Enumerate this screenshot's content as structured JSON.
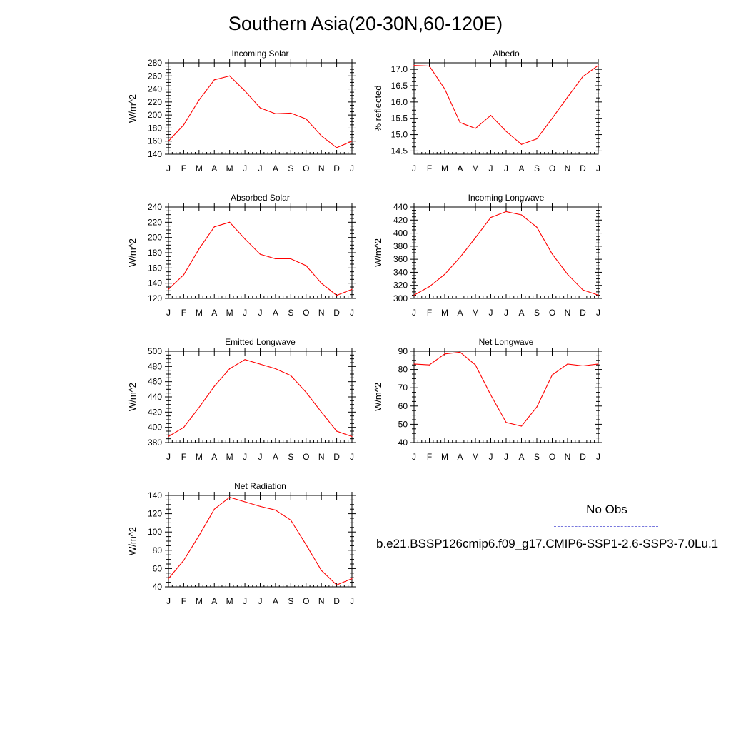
{
  "title": "Southern Asia(20-30N,60-120E)",
  "legend": {
    "obs_label": "No Obs",
    "model_label": "b.e21.BSSP126cmip6.f09_g17.CMIP6-SSP1-2.6-SSP3-7.0Lu.1",
    "model_color": "#ff0000",
    "obs_color": "#7777dd"
  },
  "chart_data": [
    {
      "type": "line",
      "title": "Incoming Solar",
      "ylabel": "W/m^2",
      "x": [
        "J",
        "F",
        "M",
        "A",
        "M",
        "J",
        "J",
        "A",
        "S",
        "O",
        "N",
        "D",
        "J"
      ],
      "ylim": [
        140,
        280
      ],
      "yticks": [
        140,
        160,
        180,
        200,
        220,
        240,
        260,
        280
      ],
      "series": [
        {
          "values": [
            160,
            185,
            223,
            254,
            260,
            237,
            211,
            202,
            203,
            194,
            168,
            150,
            160
          ]
        }
      ]
    },
    {
      "type": "line",
      "title": "Albedo",
      "ylabel": "% reflected",
      "x": [
        "J",
        "F",
        "M",
        "A",
        "M",
        "J",
        "J",
        "A",
        "S",
        "O",
        "N",
        "D",
        "J"
      ],
      "ylim": [
        14.4,
        17.2
      ],
      "yticks": [
        "14.5",
        "15.0",
        "15.5",
        "16.0",
        "16.5",
        "17.0"
      ],
      "series": [
        {
          "values": [
            17.12,
            17.1,
            16.4,
            15.37,
            15.19,
            15.59,
            15.1,
            14.7,
            14.87,
            15.5,
            16.15,
            16.78,
            17.12
          ]
        }
      ]
    },
    {
      "type": "line",
      "title": "Absorbed Solar",
      "ylabel": "W/m^2",
      "x": [
        "J",
        "F",
        "M",
        "A",
        "M",
        "J",
        "J",
        "A",
        "S",
        "O",
        "N",
        "D",
        "J"
      ],
      "ylim": [
        120,
        240
      ],
      "yticks": [
        120,
        140,
        160,
        180,
        200,
        220,
        240
      ],
      "series": [
        {
          "values": [
            132,
            151,
            185,
            214,
            220,
            198,
            178,
            172,
            172,
            163,
            140,
            124,
            132
          ]
        }
      ]
    },
    {
      "type": "line",
      "title": "Incoming Longwave",
      "ylabel": "W/m^2",
      "x": [
        "J",
        "F",
        "M",
        "A",
        "M",
        "J",
        "J",
        "A",
        "S",
        "O",
        "N",
        "D",
        "J"
      ],
      "ylim": [
        300,
        440
      ],
      "yticks": [
        300,
        320,
        340,
        360,
        380,
        400,
        420,
        440
      ],
      "series": [
        {
          "values": [
            305,
            318,
            337,
            363,
            393,
            424,
            433,
            428,
            409,
            368,
            337,
            313,
            305
          ]
        }
      ]
    },
    {
      "type": "line",
      "title": "Emitted Longwave",
      "ylabel": "W/m^2",
      "x": [
        "J",
        "F",
        "M",
        "A",
        "M",
        "J",
        "J",
        "A",
        "S",
        "O",
        "N",
        "D",
        "J"
      ],
      "ylim": [
        380,
        500
      ],
      "yticks": [
        380,
        400,
        420,
        440,
        460,
        480,
        500
      ],
      "series": [
        {
          "values": [
            388,
            400,
            426,
            454,
            477,
            489,
            483,
            477,
            468,
            446,
            420,
            395,
            388
          ]
        }
      ]
    },
    {
      "type": "line",
      "title": "Net Longwave",
      "ylabel": "W/m^2",
      "x": [
        "J",
        "F",
        "M",
        "A",
        "M",
        "J",
        "J",
        "A",
        "S",
        "O",
        "N",
        "D",
        "J"
      ],
      "ylim": [
        40,
        90
      ],
      "yticks": [
        40,
        50,
        60,
        70,
        80,
        90
      ],
      "series": [
        {
          "values": [
            83,
            82.5,
            88.5,
            89.5,
            82.5,
            66,
            51,
            49,
            59.5,
            77,
            83,
            82,
            83
          ]
        }
      ]
    },
    {
      "type": "line",
      "title": "Net Radiation",
      "ylabel": "W/m^2",
      "x": [
        "J",
        "F",
        "M",
        "A",
        "M",
        "J",
        "J",
        "A",
        "S",
        "O",
        "N",
        "D",
        "J"
      ],
      "ylim": [
        40,
        140
      ],
      "yticks": [
        40,
        60,
        80,
        100,
        120,
        140
      ],
      "series": [
        {
          "values": [
            49,
            69,
            96,
            125,
            138,
            133,
            128,
            124,
            113,
            86,
            58,
            42,
            49
          ]
        }
      ]
    }
  ]
}
